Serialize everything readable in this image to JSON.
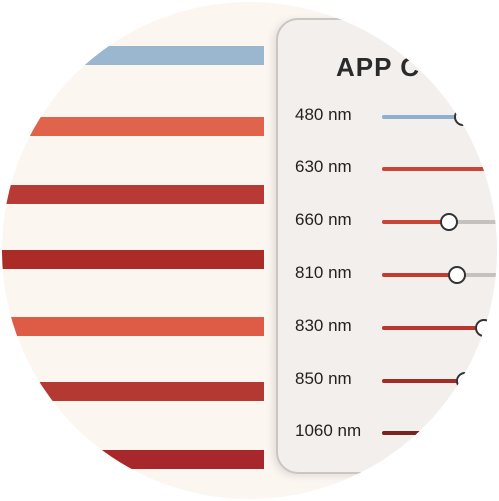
{
  "panel": {
    "title": "APP C",
    "sliders": [
      {
        "label": "480 nm",
        "color": "#8fb0cc",
        "value": 0.5
      },
      {
        "label": "630 nm",
        "color": "#c84535",
        "value": 1.0
      },
      {
        "label": "660 nm",
        "color": "#c84535",
        "value": 0.41
      },
      {
        "label": "810 nm",
        "color": "#c43c31",
        "value": 0.46
      },
      {
        "label": "830 nm",
        "color": "#b8362e",
        "value": 0.63
      },
      {
        "label": "850 nm",
        "color": "#a32b27",
        "value": 0.51
      },
      {
        "label": "1060 nm",
        "color": "#7a2420",
        "value": 1.0
      }
    ]
  },
  "stripes": [
    {
      "color": "#9ab7cf"
    },
    {
      "color": "#e0644c"
    },
    {
      "color": "#b83a34"
    },
    {
      "color": "#ab2c27"
    },
    {
      "color": "#de5c46"
    },
    {
      "color": "#b43933"
    },
    {
      "color": "#a8272a"
    }
  ]
}
